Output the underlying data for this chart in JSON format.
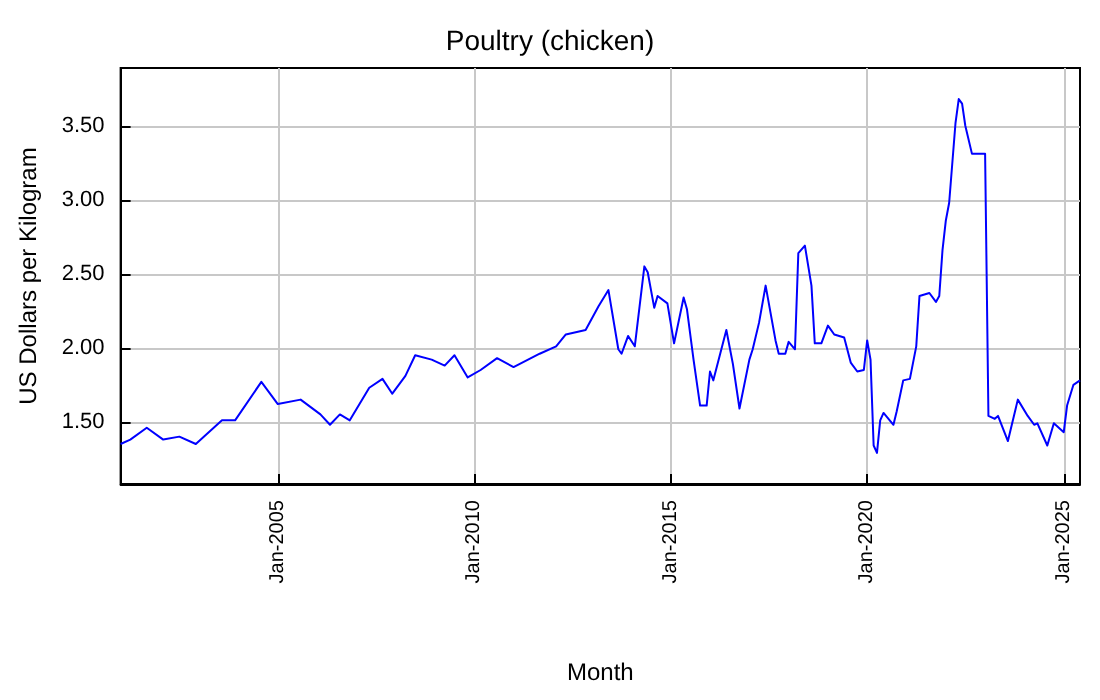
{
  "chart_data": {
    "type": "line",
    "title": "Poultry (chicken)",
    "xlabel": "Month",
    "ylabel": "US Dollars per Kilogram",
    "x": [
      "2001-01",
      "2001-04",
      "2001-09",
      "2002-02",
      "2002-07",
      "2002-12",
      "2003-08",
      "2003-12",
      "2004-08",
      "2005-01",
      "2005-08",
      "2006-02",
      "2006-05",
      "2006-08",
      "2006-11",
      "2007-05",
      "2007-09",
      "2007-12",
      "2008-04",
      "2008-07",
      "2008-12",
      "2009-04",
      "2009-07",
      "2009-11",
      "2010-03",
      "2010-08",
      "2011-01",
      "2011-09",
      "2012-02",
      "2012-05",
      "2012-11",
      "2013-03",
      "2013-06",
      "2013-09",
      "2013-10",
      "2013-12",
      "2014-02",
      "2014-05",
      "2014-06",
      "2014-08",
      "2014-09",
      "2014-12",
      "2015-02",
      "2015-05",
      "2015-06",
      "2015-08",
      "2015-10",
      "2015-12",
      "2016-01",
      "2016-02",
      "2016-06",
      "2016-08",
      "2016-10",
      "2017-01",
      "2017-02",
      "2017-04",
      "2017-06",
      "2017-09",
      "2017-10",
      "2017-12",
      "2018-01",
      "2018-03",
      "2018-04",
      "2018-06",
      "2018-08",
      "2018-09",
      "2018-11",
      "2019-01",
      "2019-03",
      "2019-06",
      "2019-08",
      "2019-10",
      "2019-12",
      "2020-01",
      "2020-02",
      "2020-03",
      "2020-04",
      "2020-05",
      "2020-06",
      "2020-09",
      "2020-10",
      "2020-12",
      "2021-02",
      "2021-04",
      "2021-05",
      "2021-08",
      "2021-10",
      "2021-11",
      "2021-12",
      "2022-01",
      "2022-02",
      "2022-04",
      "2022-05",
      "2022-06",
      "2022-07",
      "2022-09",
      "2023-01",
      "2023-02",
      "2023-04",
      "2023-05",
      "2023-08",
      "2023-11",
      "2024-02",
      "2024-04",
      "2024-05",
      "2024-08",
      "2024-10",
      "2025-01",
      "2025-02",
      "2025-04",
      "2025-06"
    ],
    "series": [
      {
        "color": "#0000ff",
        "values": [
          1.35,
          1.38,
          1.46,
          1.38,
          1.4,
          1.35,
          1.51,
          1.51,
          1.77,
          1.62,
          1.65,
          1.55,
          1.48,
          1.55,
          1.51,
          1.73,
          1.79,
          1.69,
          1.81,
          1.95,
          1.92,
          1.88,
          1.95,
          1.8,
          1.85,
          1.93,
          1.87,
          1.96,
          2.01,
          2.09,
          2.12,
          2.28,
          2.39,
          1.99,
          1.96,
          2.08,
          2.01,
          2.55,
          2.51,
          2.27,
          2.35,
          2.3,
          2.03,
          2.34,
          2.26,
          1.92,
          1.61,
          1.61,
          1.84,
          1.78,
          2.12,
          1.89,
          1.59,
          1.92,
          1.99,
          2.17,
          2.42,
          2.05,
          1.96,
          1.96,
          2.04,
          1.99,
          2.64,
          2.69,
          2.42,
          2.03,
          2.03,
          2.15,
          2.09,
          2.07,
          1.9,
          1.84,
          1.85,
          2.05,
          1.92,
          1.34,
          1.29,
          1.51,
          1.56,
          1.48,
          1.57,
          1.78,
          1.79,
          2.01,
          2.35,
          2.37,
          2.31,
          2.35,
          2.66,
          2.86,
          2.98,
          3.52,
          3.68,
          3.65,
          3.5,
          3.31,
          3.31,
          1.54,
          1.52,
          1.54,
          1.37,
          1.65,
          1.54,
          1.48,
          1.49,
          1.34,
          1.49,
          1.43,
          1.61,
          1.75,
          1.78
        ]
      }
    ],
    "xlim": [
      "2001-01",
      "2025-06"
    ],
    "xticks": [
      {
        "value": "2005-01",
        "label": "Jan-2005"
      },
      {
        "value": "2010-01",
        "label": "Jan-2010"
      },
      {
        "value": "2015-01",
        "label": "Jan-2015"
      },
      {
        "value": "2020-01",
        "label": "Jan-2020"
      },
      {
        "value": "2025-01",
        "label": "Jan-2025"
      }
    ],
    "ylim": [
      1.08,
      3.89
    ],
    "yticks": [
      {
        "value": 1.5,
        "label": "1.50"
      },
      {
        "value": 2,
        "label": "2.00"
      },
      {
        "value": 2.5,
        "label": "2.50"
      },
      {
        "value": 3,
        "label": "3.00"
      },
      {
        "value": 3.5,
        "label": "3.50"
      }
    ],
    "grid": true,
    "marker": "none",
    "line_style": "solid"
  }
}
